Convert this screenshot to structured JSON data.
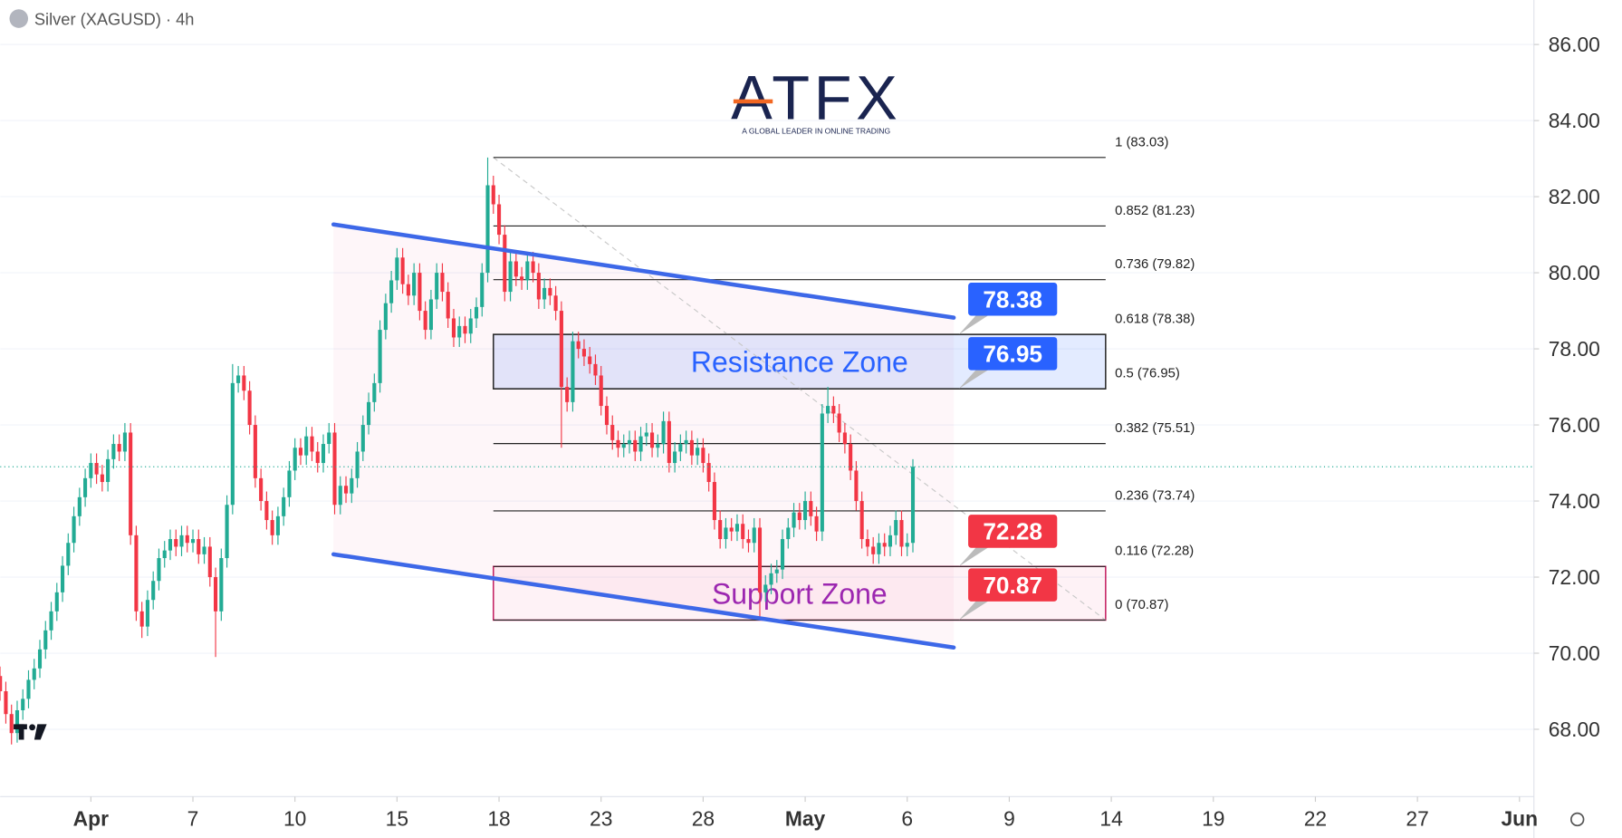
{
  "header": {
    "symbol": "Silver (XAGUSD) · 4h",
    "logo": "ATFX",
    "tagline": "A GLOBAL LEADER IN ONLINE TRADING"
  },
  "chart_data": {
    "type": "candlestick",
    "up_color": "#22ab94",
    "down_color": "#f23645",
    "grid": true,
    "ylim": [
      66.23,
      87.17
    ],
    "xlim": [
      0,
      270
    ],
    "yticks": [
      {
        "value": 68,
        "label": "68.00"
      },
      {
        "value": 70,
        "label": "70.00"
      },
      {
        "value": 72,
        "label": "72.00"
      },
      {
        "value": 74,
        "label": "74.00"
      },
      {
        "value": 76,
        "label": "76.00"
      },
      {
        "value": 78,
        "label": "78.00"
      },
      {
        "value": 80,
        "label": "80.00"
      },
      {
        "value": 82,
        "label": "82.00"
      },
      {
        "value": 84,
        "label": "84.00"
      },
      {
        "value": 86,
        "label": "86.00"
      }
    ],
    "xticks": [
      {
        "value": 16,
        "label": "Apr"
      },
      {
        "value": 34,
        "label": "7"
      },
      {
        "value": 52,
        "label": "10"
      },
      {
        "value": 70,
        "label": "15"
      },
      {
        "value": 88,
        "label": "18"
      },
      {
        "value": 106,
        "label": "23"
      },
      {
        "value": 124,
        "label": "28"
      },
      {
        "value": 142,
        "label": "May"
      },
      {
        "value": 160,
        "label": "6"
      },
      {
        "value": 178,
        "label": "9"
      },
      {
        "value": 196,
        "label": "14"
      },
      {
        "value": 214,
        "label": "19"
      },
      {
        "value": 232,
        "label": "22"
      },
      {
        "value": 250,
        "label": "27"
      },
      {
        "value": 268,
        "label": "Jun"
      }
    ],
    "open": [
      69.4,
      69.0,
      68.4,
      67.9,
      68.5,
      68.8,
      69.3,
      69.6,
      70.1,
      70.6,
      71.1,
      71.6,
      72.3,
      72.9,
      73.6,
      74.1,
      74.6,
      75.0,
      74.7,
      74.5,
      75.1,
      75.5,
      75.3,
      75.8,
      73.1,
      71.1,
      70.7,
      71.4,
      71.9,
      72.5,
      72.7,
      73.0,
      72.8,
      73.1,
      72.9,
      73.0,
      72.6,
      72.8,
      72.0,
      71.1,
      72.5,
      73.9,
      77.1,
      77.3,
      76.9,
      76.0,
      74.6,
      74.0,
      73.5,
      73.1,
      73.6,
      74.1,
      74.8,
      75.4,
      75.2,
      75.7,
      75.3,
      75.0,
      75.5,
      75.8,
      73.9,
      74.4,
      74.2,
      74.6,
      75.3,
      76.0,
      76.6,
      77.1,
      78.5,
      79.2,
      79.8,
      80.4,
      79.7,
      79.4,
      80.0,
      79.0,
      78.5,
      79.3,
      80.0,
      79.5,
      78.8,
      78.3,
      78.6,
      78.4,
      78.8,
      79.1,
      80.0,
      82.3,
      81.8,
      81.0,
      79.5,
      80.3,
      79.9,
      79.8,
      80.3,
      80.0,
      79.3,
      79.6,
      79.4,
      79.0,
      77.0,
      76.6,
      78.2,
      78.0,
      77.8,
      77.6,
      77.3,
      76.5,
      76.0,
      75.6,
      75.4,
      75.5,
      75.6,
      75.3,
      75.7,
      75.8,
      75.4,
      75.5,
      76.1,
      75.0,
      75.3,
      75.5,
      75.6,
      75.2,
      75.4,
      75.0,
      74.5,
      73.5,
      73.0,
      73.3,
      73.2,
      73.4,
      73.0,
      72.9,
      73.3,
      71.6,
      71.8,
      72.1,
      72.2,
      73.0,
      73.3,
      73.7,
      73.5,
      74.0,
      73.6,
      73.2,
      76.3,
      76.5,
      76.3,
      75.8,
      75.5,
      74.8,
      74.0,
      73.0,
      72.8,
      72.6,
      72.9,
      72.8,
      73.1,
      73.5,
      72.8,
      72.9
    ],
    "high": [
      69.65,
      69.25,
      68.65,
      68.75,
      69.05,
      69.55,
      69.85,
      70.35,
      70.85,
      71.35,
      71.85,
      72.55,
      73.15,
      73.85,
      74.35,
      74.85,
      75.25,
      75.25,
      74.95,
      75.35,
      75.75,
      75.75,
      76.05,
      76.05,
      73.35,
      71.35,
      71.65,
      72.15,
      72.75,
      72.95,
      73.25,
      73.25,
      73.35,
      73.35,
      73.25,
      73.25,
      73.05,
      73.05,
      72.25,
      72.75,
      74.15,
      77.6,
      77.55,
      77.55,
      77.15,
      76.25,
      74.85,
      74.25,
      73.75,
      73.85,
      74.35,
      75.05,
      75.65,
      75.65,
      75.95,
      75.95,
      75.55,
      75.75,
      76.05,
      76.05,
      74.65,
      74.65,
      74.85,
      75.55,
      76.25,
      76.85,
      77.35,
      78.75,
      79.45,
      80.05,
      80.65,
      80.65,
      79.95,
      80.25,
      80.25,
      79.25,
      79.55,
      80.25,
      80.25,
      79.75,
      79.05,
      78.85,
      78.85,
      79.05,
      79.35,
      80.25,
      83.03,
      82.55,
      82.05,
      81.25,
      80.55,
      80.55,
      80.15,
      80.55,
      80.55,
      80.25,
      79.85,
      79.85,
      79.65,
      79.25,
      77.25,
      78.45,
      78.45,
      78.25,
      78.05,
      77.85,
      77.55,
      76.75,
      76.25,
      75.85,
      75.75,
      75.85,
      75.85,
      75.95,
      76.05,
      76.05,
      75.75,
      76.35,
      76.35,
      75.55,
      75.75,
      75.85,
      75.85,
      75.65,
      75.65,
      75.25,
      74.75,
      73.75,
      73.55,
      73.55,
      73.65,
      73.65,
      73.25,
      73.55,
      73.55,
      72.05,
      72.35,
      72.45,
      73.25,
      73.55,
      73.95,
      73.95,
      74.25,
      74.25,
      73.85,
      76.55,
      77.0,
      76.75,
      76.55,
      76.05,
      75.75,
      75.05,
      74.25,
      73.25,
      73.05,
      73.15,
      73.15,
      73.35,
      73.75,
      73.75,
      73.15,
      75.1
    ],
    "low": [
      68.75,
      68.15,
      67.6,
      67.65,
      68.25,
      68.55,
      69.05,
      69.35,
      69.85,
      70.35,
      70.85,
      71.35,
      72.05,
      72.65,
      73.35,
      73.85,
      74.35,
      74.45,
      74.25,
      74.25,
      74.85,
      75.05,
      75.05,
      72.85,
      70.85,
      70.4,
      70.45,
      71.15,
      71.65,
      72.25,
      72.45,
      72.55,
      72.55,
      72.65,
      72.65,
      72.35,
      72.35,
      71.75,
      69.9,
      70.85,
      72.25,
      73.65,
      76.85,
      76.65,
      75.75,
      74.35,
      73.75,
      73.25,
      72.85,
      72.85,
      73.35,
      73.85,
      74.55,
      74.95,
      74.95,
      75.05,
      74.75,
      74.75,
      75.25,
      73.65,
      73.65,
      73.95,
      73.95,
      74.35,
      75.05,
      75.75,
      76.35,
      76.85,
      78.25,
      78.95,
      79.55,
      79.45,
      79.15,
      79.15,
      78.75,
      78.25,
      78.25,
      79.05,
      79.25,
      78.55,
      78.05,
      78.05,
      78.15,
      78.15,
      78.55,
      78.85,
      79.75,
      81.55,
      80.75,
      79.25,
      79.25,
      79.65,
      79.55,
      79.55,
      79.75,
      79.05,
      79.05,
      79.15,
      78.75,
      75.4,
      76.35,
      76.35,
      77.75,
      77.55,
      77.35,
      77.05,
      76.25,
      75.75,
      75.35,
      75.15,
      75.15,
      75.25,
      75.05,
      75.05,
      75.45,
      75.15,
      75.15,
      75.25,
      74.75,
      74.75,
      75.05,
      75.25,
      74.95,
      74.95,
      74.75,
      74.25,
      73.25,
      72.75,
      72.75,
      72.95,
      72.95,
      72.75,
      72.65,
      72.65,
      70.9,
      71.35,
      71.55,
      71.85,
      71.95,
      72.75,
      73.05,
      73.25,
      73.25,
      73.35,
      72.95,
      72.95,
      76.05,
      76.05,
      75.55,
      75.25,
      74.55,
      73.75,
      72.75,
      72.55,
      72.35,
      72.35,
      72.55,
      72.55,
      72.85,
      72.55,
      72.55,
      72.65
    ],
    "close": [
      69.0,
      68.4,
      67.9,
      68.5,
      68.8,
      69.3,
      69.6,
      70.1,
      70.6,
      71.1,
      71.6,
      72.3,
      72.9,
      73.6,
      74.1,
      74.6,
      75.0,
      74.7,
      74.5,
      75.1,
      75.5,
      75.3,
      75.8,
      73.1,
      71.1,
      70.7,
      71.4,
      71.9,
      72.5,
      72.7,
      73.0,
      72.8,
      73.1,
      72.9,
      73.0,
      72.6,
      72.8,
      72.0,
      71.1,
      72.5,
      73.9,
      77.1,
      77.3,
      76.9,
      76.0,
      74.6,
      74.0,
      73.5,
      73.1,
      73.6,
      74.1,
      74.8,
      75.4,
      75.2,
      75.7,
      75.3,
      75.0,
      75.5,
      75.8,
      73.9,
      74.4,
      74.2,
      74.6,
      75.3,
      76.0,
      76.6,
      77.1,
      78.5,
      79.2,
      79.8,
      80.4,
      79.7,
      79.4,
      80.0,
      79.0,
      78.5,
      79.3,
      80.0,
      79.5,
      78.8,
      78.3,
      78.6,
      78.4,
      78.8,
      79.1,
      80.0,
      82.3,
      81.8,
      81.0,
      79.5,
      80.3,
      79.9,
      79.8,
      80.3,
      80.0,
      79.3,
      79.6,
      79.4,
      79.0,
      77.0,
      76.6,
      78.2,
      78.0,
      77.8,
      77.6,
      77.3,
      76.5,
      76.0,
      75.6,
      75.4,
      75.5,
      75.6,
      75.3,
      75.7,
      75.8,
      75.4,
      75.5,
      76.1,
      75.0,
      75.3,
      75.5,
      75.6,
      75.2,
      75.4,
      75.0,
      74.5,
      73.5,
      73.0,
      73.3,
      73.2,
      73.4,
      73.0,
      72.9,
      73.3,
      71.6,
      71.8,
      72.1,
      72.2,
      73.0,
      73.3,
      73.7,
      73.5,
      74.0,
      73.6,
      73.2,
      76.3,
      76.5,
      76.3,
      75.8,
      75.5,
      74.8,
      74.0,
      73.0,
      72.8,
      72.6,
      72.9,
      72.8,
      73.1,
      73.5,
      72.8,
      72.9,
      74.9
    ],
    "trendline_color": "#3d68e8",
    "trendlines": [
      {
        "x": [
          58.8,
          168.2
        ],
        "y": [
          81.27,
          78.82
        ]
      },
      {
        "x": [
          58.8,
          168.2
        ],
        "y": [
          72.6,
          70.15
        ]
      }
    ],
    "fib_x": [
      87,
      195
    ],
    "fib_levels": [
      {
        "value": 83.03,
        "label": "1 (83.03)"
      },
      {
        "value": 81.23,
        "label": "0.852 (81.23)"
      },
      {
        "value": 79.82,
        "label": "0.736 (79.82)"
      },
      {
        "value": 78.38,
        "label": "0.618 (78.38)"
      },
      {
        "value": 76.95,
        "label": "0.5 (76.95)"
      },
      {
        "value": 75.51,
        "label": "0.382 (75.51)"
      },
      {
        "value": 73.74,
        "label": "0.236 (73.74)"
      },
      {
        "value": 72.28,
        "label": "0.116 (72.28)"
      },
      {
        "value": 70.87,
        "label": "0 (70.87)"
      }
    ],
    "zones": [
      {
        "label": "Resistance Zone",
        "range": [
          78.38,
          76.95
        ],
        "color": "#2962ff",
        "fill": "rgba(41,98,255,0.13)",
        "border": "#222"
      },
      {
        "label": "Support Zone",
        "range": [
          72.28,
          70.87
        ],
        "color": "#9c27b0",
        "fill": "rgba(233,30,99,0.06)",
        "border": "#c2185b"
      }
    ],
    "callouts": [
      {
        "value": 78.38,
        "color": "#2962ff"
      },
      {
        "value": 76.95,
        "color": "#2962ff"
      },
      {
        "value": 72.28,
        "color": "#f23645"
      },
      {
        "value": 70.87,
        "color": "#f23645"
      }
    ]
  }
}
